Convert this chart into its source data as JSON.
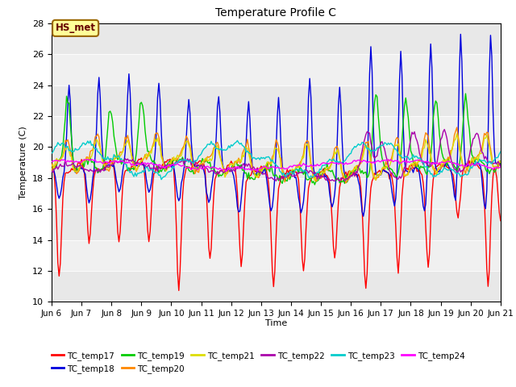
{
  "title": "Temperature Profile C",
  "xlabel": "Time",
  "ylabel": "Temperature (C)",
  "ylim": [
    10,
    28
  ],
  "xlim": [
    0,
    360
  ],
  "x_tick_labels": [
    "Jun 6",
    "Jun 7",
    "Jun 8",
    "Jun 9",
    "Jun 10",
    "Jun 11",
    "Jun 12",
    "Jun 13",
    "Jun 14",
    "Jun 15",
    "Jun 16",
    "Jun 17",
    "Jun 18",
    "Jun 19",
    "Jun 20",
    "Jun 21"
  ],
  "x_tick_positions": [
    0,
    24,
    48,
    72,
    96,
    120,
    144,
    168,
    192,
    216,
    240,
    264,
    288,
    312,
    336,
    360
  ],
  "series_colors": {
    "TC_temp17": "#ff0000",
    "TC_temp18": "#0000dd",
    "TC_temp19": "#00cc00",
    "TC_temp20": "#ff8800",
    "TC_temp21": "#dddd00",
    "TC_temp22": "#aa00aa",
    "TC_temp23": "#00cccc",
    "TC_temp24": "#ff00ff"
  },
  "annotation_text": "HS_met",
  "annotation_facecolor": "#ffff99",
  "annotation_edgecolor": "#996600",
  "annotation_textcolor": "#660000",
  "band_colors": [
    "#e8e8e8",
    "#f0f0f0"
  ],
  "y_ticks": [
    10,
    12,
    14,
    16,
    18,
    20,
    22,
    24,
    26,
    28
  ]
}
